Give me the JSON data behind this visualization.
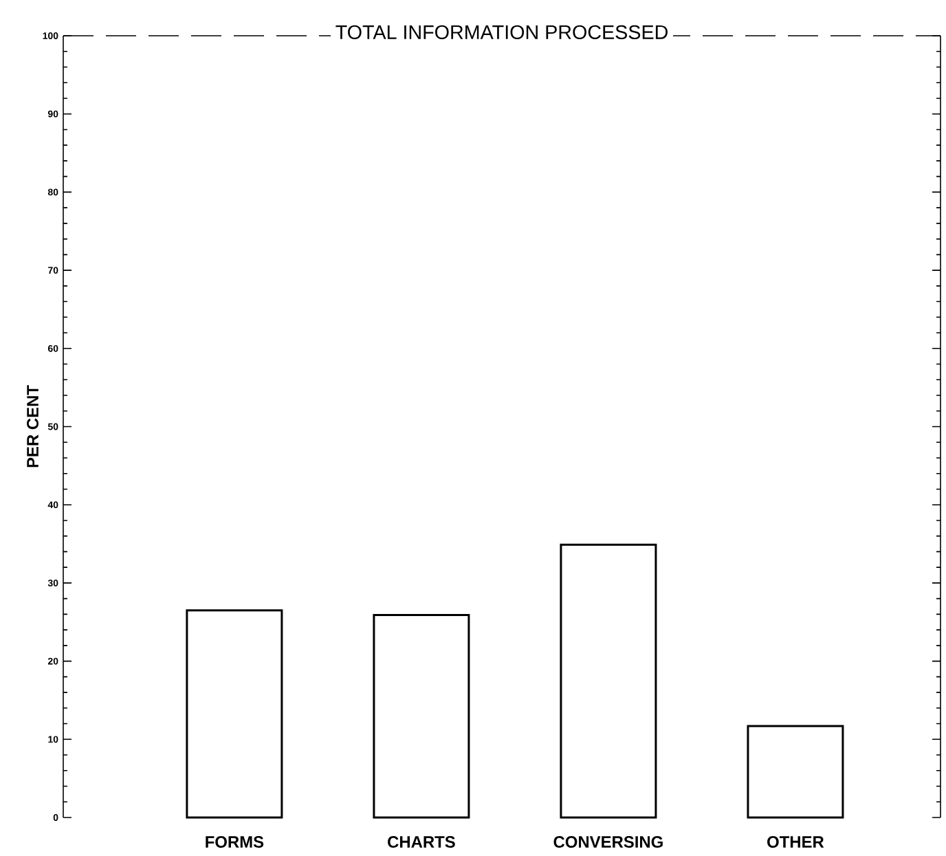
{
  "chart_data": {
    "type": "bar",
    "title": "TOTAL INFORMATION PROCESSED",
    "ylabel": "PER CENT",
    "categories": [
      "FORMS",
      "CHARTS",
      "CONVERSING",
      "OTHER"
    ],
    "values": [
      26.5,
      25.9,
      34.9,
      11.7
    ],
    "color": "#000000",
    "ylim": [
      0,
      100
    ],
    "yticks": [
      0,
      10,
      20,
      30,
      40,
      50,
      60,
      70,
      80,
      90,
      100
    ]
  }
}
